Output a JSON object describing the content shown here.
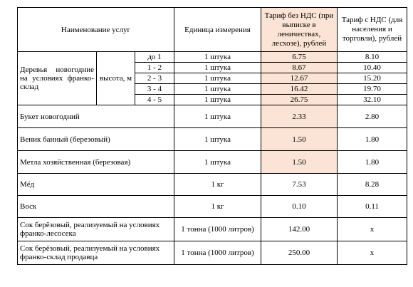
{
  "headers": {
    "service": "Наименование  услуг",
    "unit": "Единица измерения",
    "tariff_no_vat": "Тариф без НДС (при выписке в леничествах, лесхозе), рублей",
    "tariff_vat": "Тариф с НДС (для населения и торговли), рублей"
  },
  "trees": {
    "label": "Деревья новогодние на условиях франко-склад",
    "height_label": "высота, м",
    "rows": [
      {
        "height": "до 1",
        "unit": "1 штука",
        "no_vat": "6.75",
        "vat": "8.10"
      },
      {
        "height": "1 - 2",
        "unit": "1 штука",
        "no_vat": "8.67",
        "vat": "10.40"
      },
      {
        "height": "2 - 3",
        "unit": "1 штука",
        "no_vat": "12.67",
        "vat": "15.20"
      },
      {
        "height": "3 - 4",
        "unit": "1 штука",
        "no_vat": "16.42",
        "vat": "19.70"
      },
      {
        "height": "4 - 5",
        "unit": "1 штука",
        "no_vat": "26.75",
        "vat": "32.10"
      }
    ]
  },
  "items": [
    {
      "name": "Букет новогодний",
      "unit": "1 штука",
      "no_vat": "2.33",
      "vat": "2.80"
    },
    {
      "name": "Веник банный (березовый)",
      "unit": "1 штука",
      "no_vat": "1.50",
      "vat": "1.80"
    },
    {
      "name": "Метла хозяйственная (березовая)",
      "unit": "1 штука",
      "no_vat": "1.50",
      "vat": "1.80"
    },
    {
      "name": "Мёд",
      "unit": "1 кг",
      "no_vat": "7.53",
      "vat": "8.28"
    },
    {
      "name": "Воск",
      "unit": "1 кг",
      "no_vat": "0.10",
      "vat": "0.11"
    },
    {
      "name": "Сок  берёзовый,  реализуемый  на условиях  франко-лесосека",
      "unit": "1 тонна (1000 литров)",
      "no_vat": "142.00",
      "vat": "x"
    },
    {
      "name": "Сок  берёзовый,  реализуемый  на условиях  франко-склад продавца",
      "unit": "1 тонна (1000 литров)",
      "no_vat": "250.00",
      "vat": "x"
    }
  ],
  "colors": {
    "highlight": "#fbe4d5",
    "border": "#000000"
  }
}
